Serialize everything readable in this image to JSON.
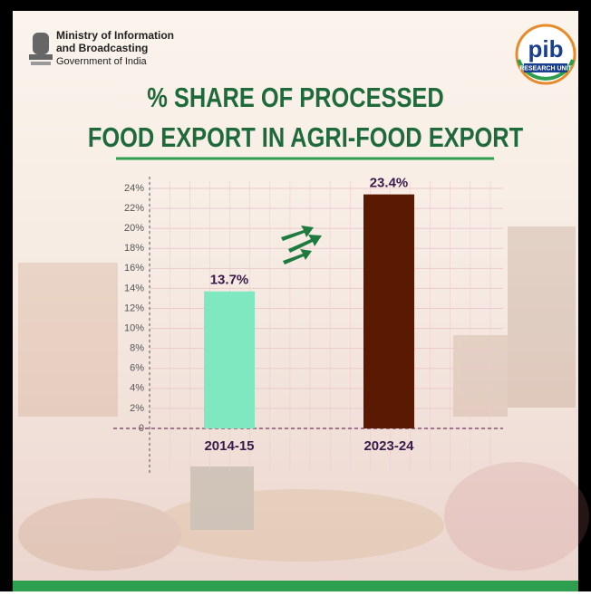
{
  "header": {
    "ministry": [
      "Ministry of Information",
      "and Broadcasting"
    ],
    "government": "Government of India",
    "logo_text": "pib",
    "logo_subtext": "RESEARCH UNIT"
  },
  "chart_data": {
    "type": "bar",
    "title": [
      "% SHARE OF PROCESSED",
      "FOOD EXPORT IN AGRI-FOOD EXPORT"
    ],
    "categories": [
      "2014-15",
      "2023-24"
    ],
    "values": [
      13.7,
      23.4
    ],
    "value_labels": [
      "13.7%",
      "23.4%"
    ],
    "colors": [
      "#7fe8c1",
      "#5a1a02"
    ],
    "ylim": [
      0,
      24
    ],
    "yticks": [
      0,
      {
        "value": 2,
        "label": "2%"
      },
      {
        "value": 4,
        "label": "4%"
      },
      {
        "value": 6,
        "label": "6%"
      },
      {
        "value": 8,
        "label": "8%"
      },
      {
        "value": 10,
        "label": "10%"
      },
      {
        "value": 12,
        "label": "12%"
      },
      {
        "value": 14,
        "label": "14%"
      },
      {
        "value": 16,
        "label": "16%"
      },
      {
        "value": 18,
        "label": "18%"
      },
      {
        "value": 20,
        "label": "20%"
      },
      {
        "value": 22,
        "label": "22%"
      },
      {
        "value": 24,
        "label": "24%"
      }
    ],
    "grid": true
  }
}
